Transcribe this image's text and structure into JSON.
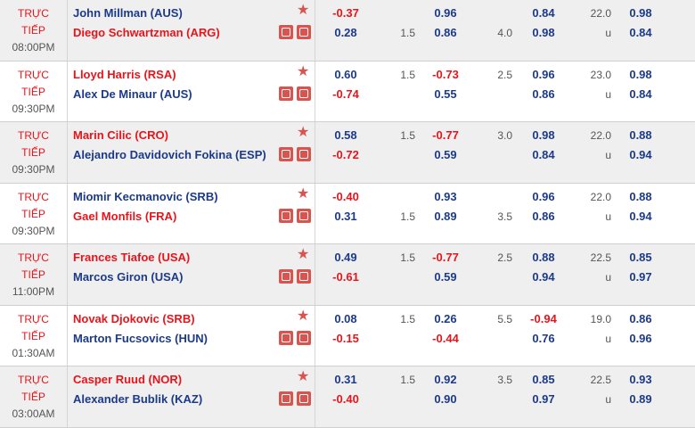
{
  "rows": [
    {
      "status": [
        "TRỰC",
        "TIẾP"
      ],
      "time": "08:00PM",
      "highlight": 1,
      "players": [
        "John Millman (AUS)",
        "Diego Schwartzman (ARG)"
      ],
      "odds": [
        [
          "-0.37",
          null,
          "0.96",
          null,
          "0.84",
          "22.0",
          "0.98"
        ],
        [
          "0.28",
          "1.5",
          "0.86",
          "4.0",
          "0.98",
          "u",
          "0.84"
        ]
      ]
    },
    {
      "status": [
        "TRỰC",
        "TIẾP"
      ],
      "time": "09:30PM",
      "highlight": 0,
      "players": [
        "Lloyd Harris (RSA)",
        "Alex De Minaur (AUS)"
      ],
      "odds": [
        [
          "0.60",
          "1.5",
          "-0.73",
          "2.5",
          "0.96",
          "23.0",
          "0.98"
        ],
        [
          "-0.74",
          null,
          "0.55",
          null,
          "0.86",
          "u",
          "0.84"
        ]
      ]
    },
    {
      "status": [
        "TRỰC",
        "TIẾP"
      ],
      "time": "09:30PM",
      "highlight": 0,
      "players": [
        "Marin Cilic (CRO)",
        "Alejandro Davidovich Fokina (ESP)"
      ],
      "odds": [
        [
          "0.58",
          "1.5",
          "-0.77",
          "3.0",
          "0.98",
          "22.0",
          "0.88"
        ],
        [
          "-0.72",
          null,
          "0.59",
          null,
          "0.84",
          "u",
          "0.94"
        ]
      ]
    },
    {
      "status": [
        "TRỰC",
        "TIẾP"
      ],
      "time": "09:30PM",
      "highlight": 1,
      "players": [
        "Miomir Kecmanovic (SRB)",
        "Gael Monfils (FRA)"
      ],
      "odds": [
        [
          "-0.40",
          null,
          "0.93",
          null,
          "0.96",
          "22.0",
          "0.88"
        ],
        [
          "0.31",
          "1.5",
          "0.89",
          "3.5",
          "0.86",
          "u",
          "0.94"
        ]
      ]
    },
    {
      "status": [
        "TRỰC",
        "TIẾP"
      ],
      "time": "11:00PM",
      "highlight": 0,
      "players": [
        "Frances Tiafoe (USA)",
        "Marcos Giron (USA)"
      ],
      "odds": [
        [
          "0.49",
          "1.5",
          "-0.77",
          "2.5",
          "0.88",
          "22.5",
          "0.85"
        ],
        [
          "-0.61",
          null,
          "0.59",
          null,
          "0.94",
          "u",
          "0.97"
        ]
      ]
    },
    {
      "status": [
        "TRỰC",
        "TIẾP"
      ],
      "time": "01:30AM",
      "highlight": 0,
      "players": [
        "Novak Djokovic (SRB)",
        "Marton Fucsovics (HUN)"
      ],
      "odds": [
        [
          "0.08",
          "1.5",
          "0.26",
          "5.5",
          "-0.94",
          "19.0",
          "0.86"
        ],
        [
          "-0.15",
          null,
          "-0.44",
          null,
          "0.76",
          "u",
          "0.96"
        ]
      ]
    },
    {
      "status": [
        "TRỰC",
        "TIẾP"
      ],
      "time": "03:00AM",
      "highlight": 0,
      "players": [
        "Casper Ruud (NOR)",
        "Alexander Bublik (KAZ)"
      ],
      "odds": [
        [
          "0.31",
          "1.5",
          "0.92",
          "3.5",
          "0.85",
          "22.5",
          "0.93"
        ],
        [
          "-0.40",
          null,
          "0.90",
          null,
          "0.97",
          "u",
          "0.89"
        ]
      ]
    }
  ]
}
